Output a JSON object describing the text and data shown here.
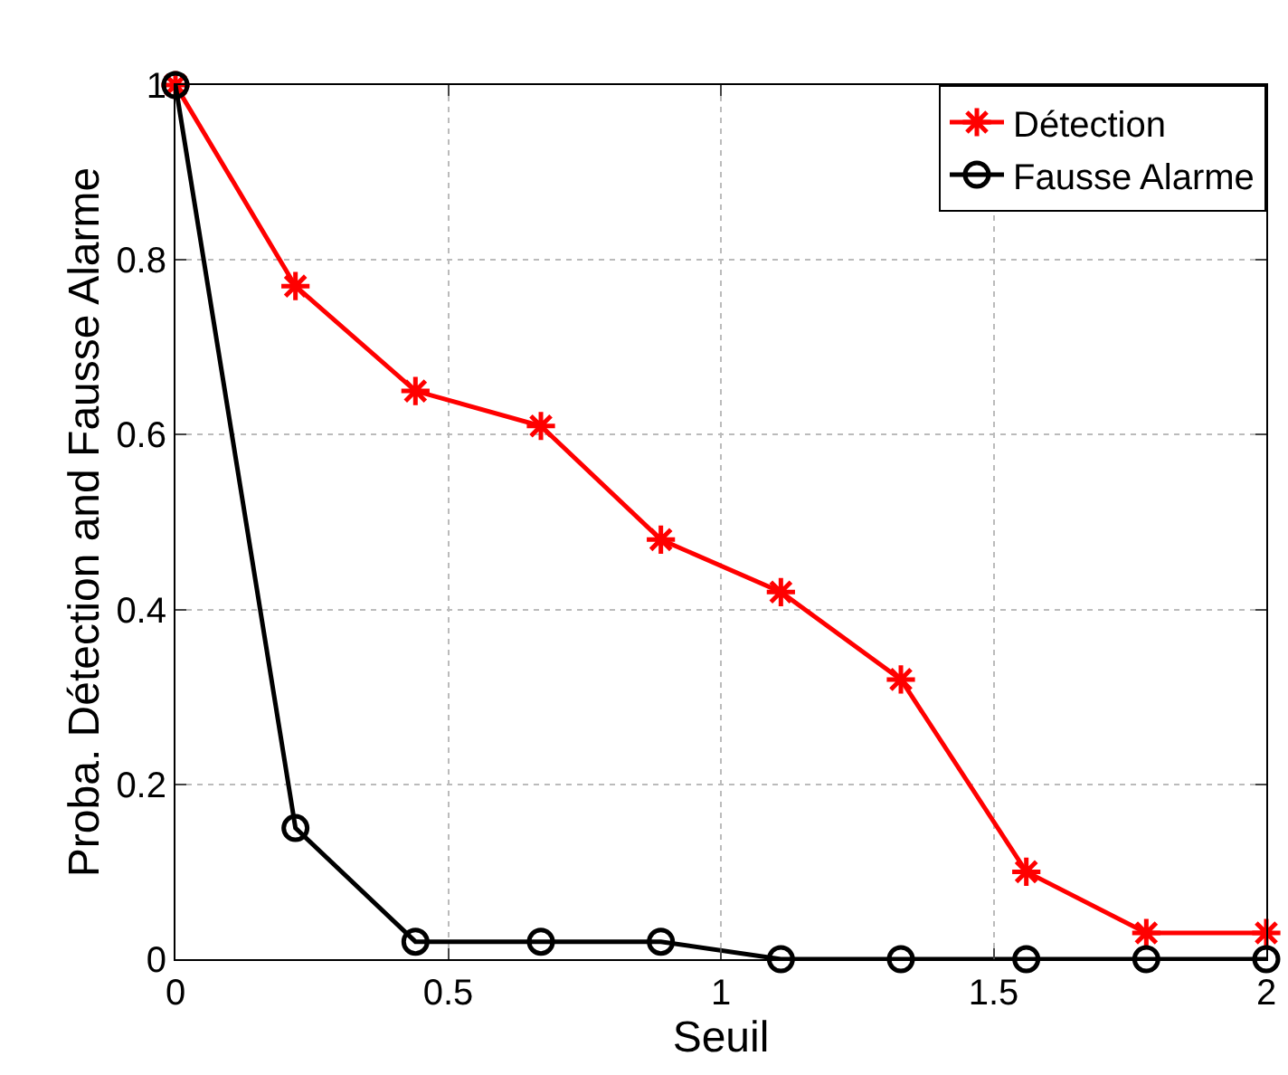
{
  "chart_data": {
    "type": "line",
    "xlabel": "Seuil",
    "ylabel": "Proba. Détection and Fausse Alarme",
    "x": [
      0,
      0.22,
      0.44,
      0.67,
      0.89,
      1.11,
      1.33,
      1.56,
      1.78,
      2
    ],
    "series": [
      {
        "name": "Détection",
        "color": "#ff0000",
        "marker": "cross",
        "values": [
          1,
          0.77,
          0.65,
          0.61,
          0.48,
          0.42,
          0.32,
          0.1,
          0.03,
          0.03
        ]
      },
      {
        "name": "Fausse Alarme",
        "color": "#000000",
        "marker": "circle",
        "values": [
          1,
          0.15,
          0.02,
          0.02,
          0.02,
          0,
          0,
          0,
          0,
          0
        ]
      }
    ],
    "xlim": [
      0,
      2
    ],
    "xticks": [
      0,
      0.5,
      1,
      1.5,
      2
    ],
    "ylim": [
      0,
      1
    ],
    "yticks": [
      0,
      0.2,
      0.4,
      0.6,
      0.8,
      1
    ],
    "grid": true,
    "legend": "top right",
    "line_style": "solid"
  }
}
